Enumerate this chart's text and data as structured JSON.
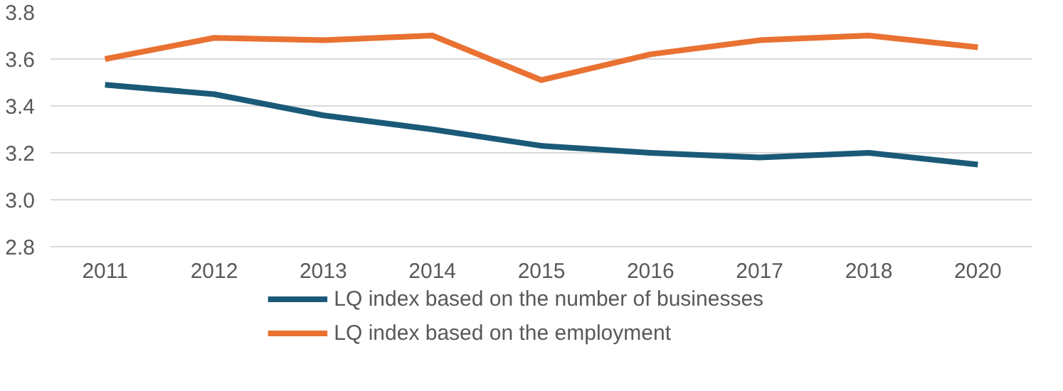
{
  "chart_data": {
    "type": "line",
    "categories": [
      "2011",
      "2012",
      "2013",
      "2014",
      "2015",
      "2016",
      "2017",
      "2018",
      "2020"
    ],
    "series": [
      {
        "name": "LQ index based on the number of businesses",
        "color": "#1a5a78",
        "values": [
          3.49,
          3.45,
          3.36,
          3.3,
          3.23,
          3.2,
          3.18,
          3.2,
          3.15
        ]
      },
      {
        "name": "LQ index based on the employment",
        "color": "#e97132",
        "values": [
          3.6,
          3.69,
          3.68,
          3.7,
          3.51,
          3.62,
          3.68,
          3.7,
          3.65
        ]
      }
    ],
    "ylim": [
      2.8,
      3.8
    ],
    "yticks": [
      {
        "value": 2.8,
        "label": "2.8"
      },
      {
        "value": 3.0,
        "label": "3.0"
      },
      {
        "value": 3.2,
        "label": "3.2"
      },
      {
        "value": 3.4,
        "label": "3.4"
      },
      {
        "value": 3.6,
        "label": "3.6"
      },
      {
        "value": 3.8,
        "label": "3.8"
      }
    ],
    "grid": "y",
    "legend": "bottom",
    "line_style": "solid"
  }
}
